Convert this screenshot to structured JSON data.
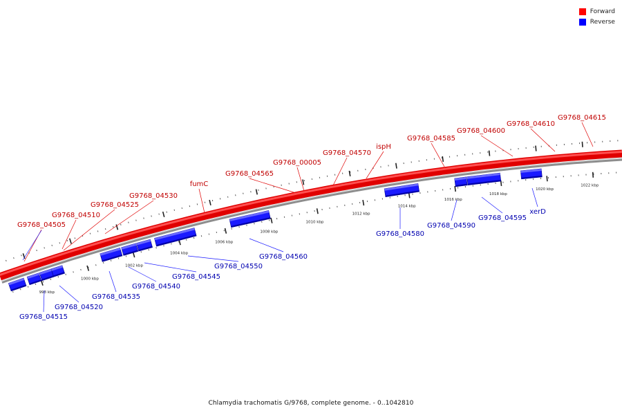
{
  "caption": "Chlamydia trachomatis G/9768, complete genome. - 0..1042810",
  "legend": [
    {
      "label": "Forward",
      "color": "#ff0000"
    },
    {
      "label": "Reverse",
      "color": "#0000ff"
    }
  ],
  "colors": {
    "forward": "#e00000",
    "reverse": "#1a1aff",
    "backbone": "#9a9a9a",
    "scale": "#333333"
  },
  "scale_labels_kbp": [
    {
      "label": "998 kbp",
      "kbp": 998
    },
    {
      "label": "1000 kbp",
      "kbp": 1000
    },
    {
      "label": "1002 kbp",
      "kbp": 1002
    },
    {
      "label": "1004 kbp",
      "kbp": 1004
    },
    {
      "label": "1006 kbp",
      "kbp": 1006
    },
    {
      "label": "1008 kbp",
      "kbp": 1008
    },
    {
      "label": "1010 kbp",
      "kbp": 1010
    },
    {
      "label": "1012 kbp",
      "kbp": 1012
    },
    {
      "label": "1014 kbp",
      "kbp": 1014
    },
    {
      "label": "1016 kbp",
      "kbp": 1016
    },
    {
      "label": "1018 kbp",
      "kbp": 1018
    },
    {
      "label": "1020 kbp",
      "kbp": 1020
    },
    {
      "label": "1022 kbp",
      "kbp": 1022
    }
  ],
  "forward_genes": [
    {
      "label": "G9768_04505"
    },
    {
      "label": "G9768_04510"
    },
    {
      "label": "G9768_04525"
    },
    {
      "label": "G9768_04530"
    },
    {
      "label": "fumC"
    },
    {
      "label": "G9768_04565"
    },
    {
      "label": "G9768_00005"
    },
    {
      "label": "G9768_04570"
    },
    {
      "label": "ispH"
    },
    {
      "label": "G9768_04585"
    },
    {
      "label": "G9768_04600"
    },
    {
      "label": "G9768_04610"
    },
    {
      "label": "G9768_04615"
    }
  ],
  "reverse_genes": [
    {
      "label": "G9768_04515"
    },
    {
      "label": "G9768_04520"
    },
    {
      "label": "G9768_04535"
    },
    {
      "label": "G9768_04540"
    },
    {
      "label": "G9768_04545"
    },
    {
      "label": "G9768_04550"
    },
    {
      "label": "G9768_04560"
    },
    {
      "label": "G9768_04580"
    },
    {
      "label": "G9768_04590"
    },
    {
      "label": "G9768_04595"
    },
    {
      "label": "xerD"
    }
  ]
}
